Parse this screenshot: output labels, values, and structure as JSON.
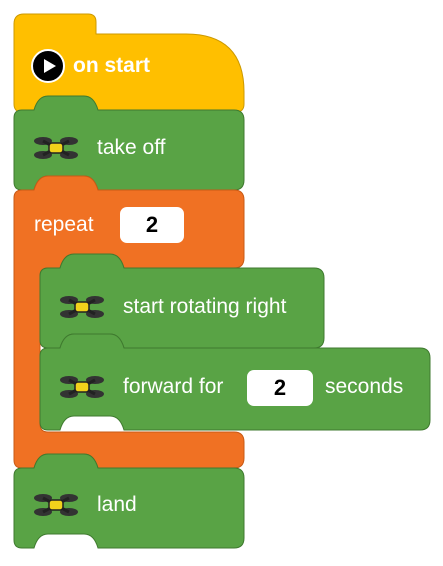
{
  "colors": {
    "event_block": "#ffbf00",
    "event_stroke": "#cc9900",
    "drone_block": "#59a345",
    "drone_stroke": "#3f7a2f",
    "control_block": "#f07123",
    "control_stroke": "#c85a15"
  },
  "hat": {
    "label": "on start",
    "icon": "play-icon"
  },
  "blocks": {
    "takeoff": {
      "label": "take off",
      "icon": "drone-icon"
    },
    "repeat": {
      "label": "repeat",
      "count": "2"
    },
    "rotate": {
      "label": "start rotating right",
      "icon": "drone-icon"
    },
    "forward": {
      "label": "forward for",
      "value": "2",
      "unit": "seconds",
      "icon": "drone-icon"
    },
    "land": {
      "label": "land",
      "icon": "drone-icon"
    }
  }
}
